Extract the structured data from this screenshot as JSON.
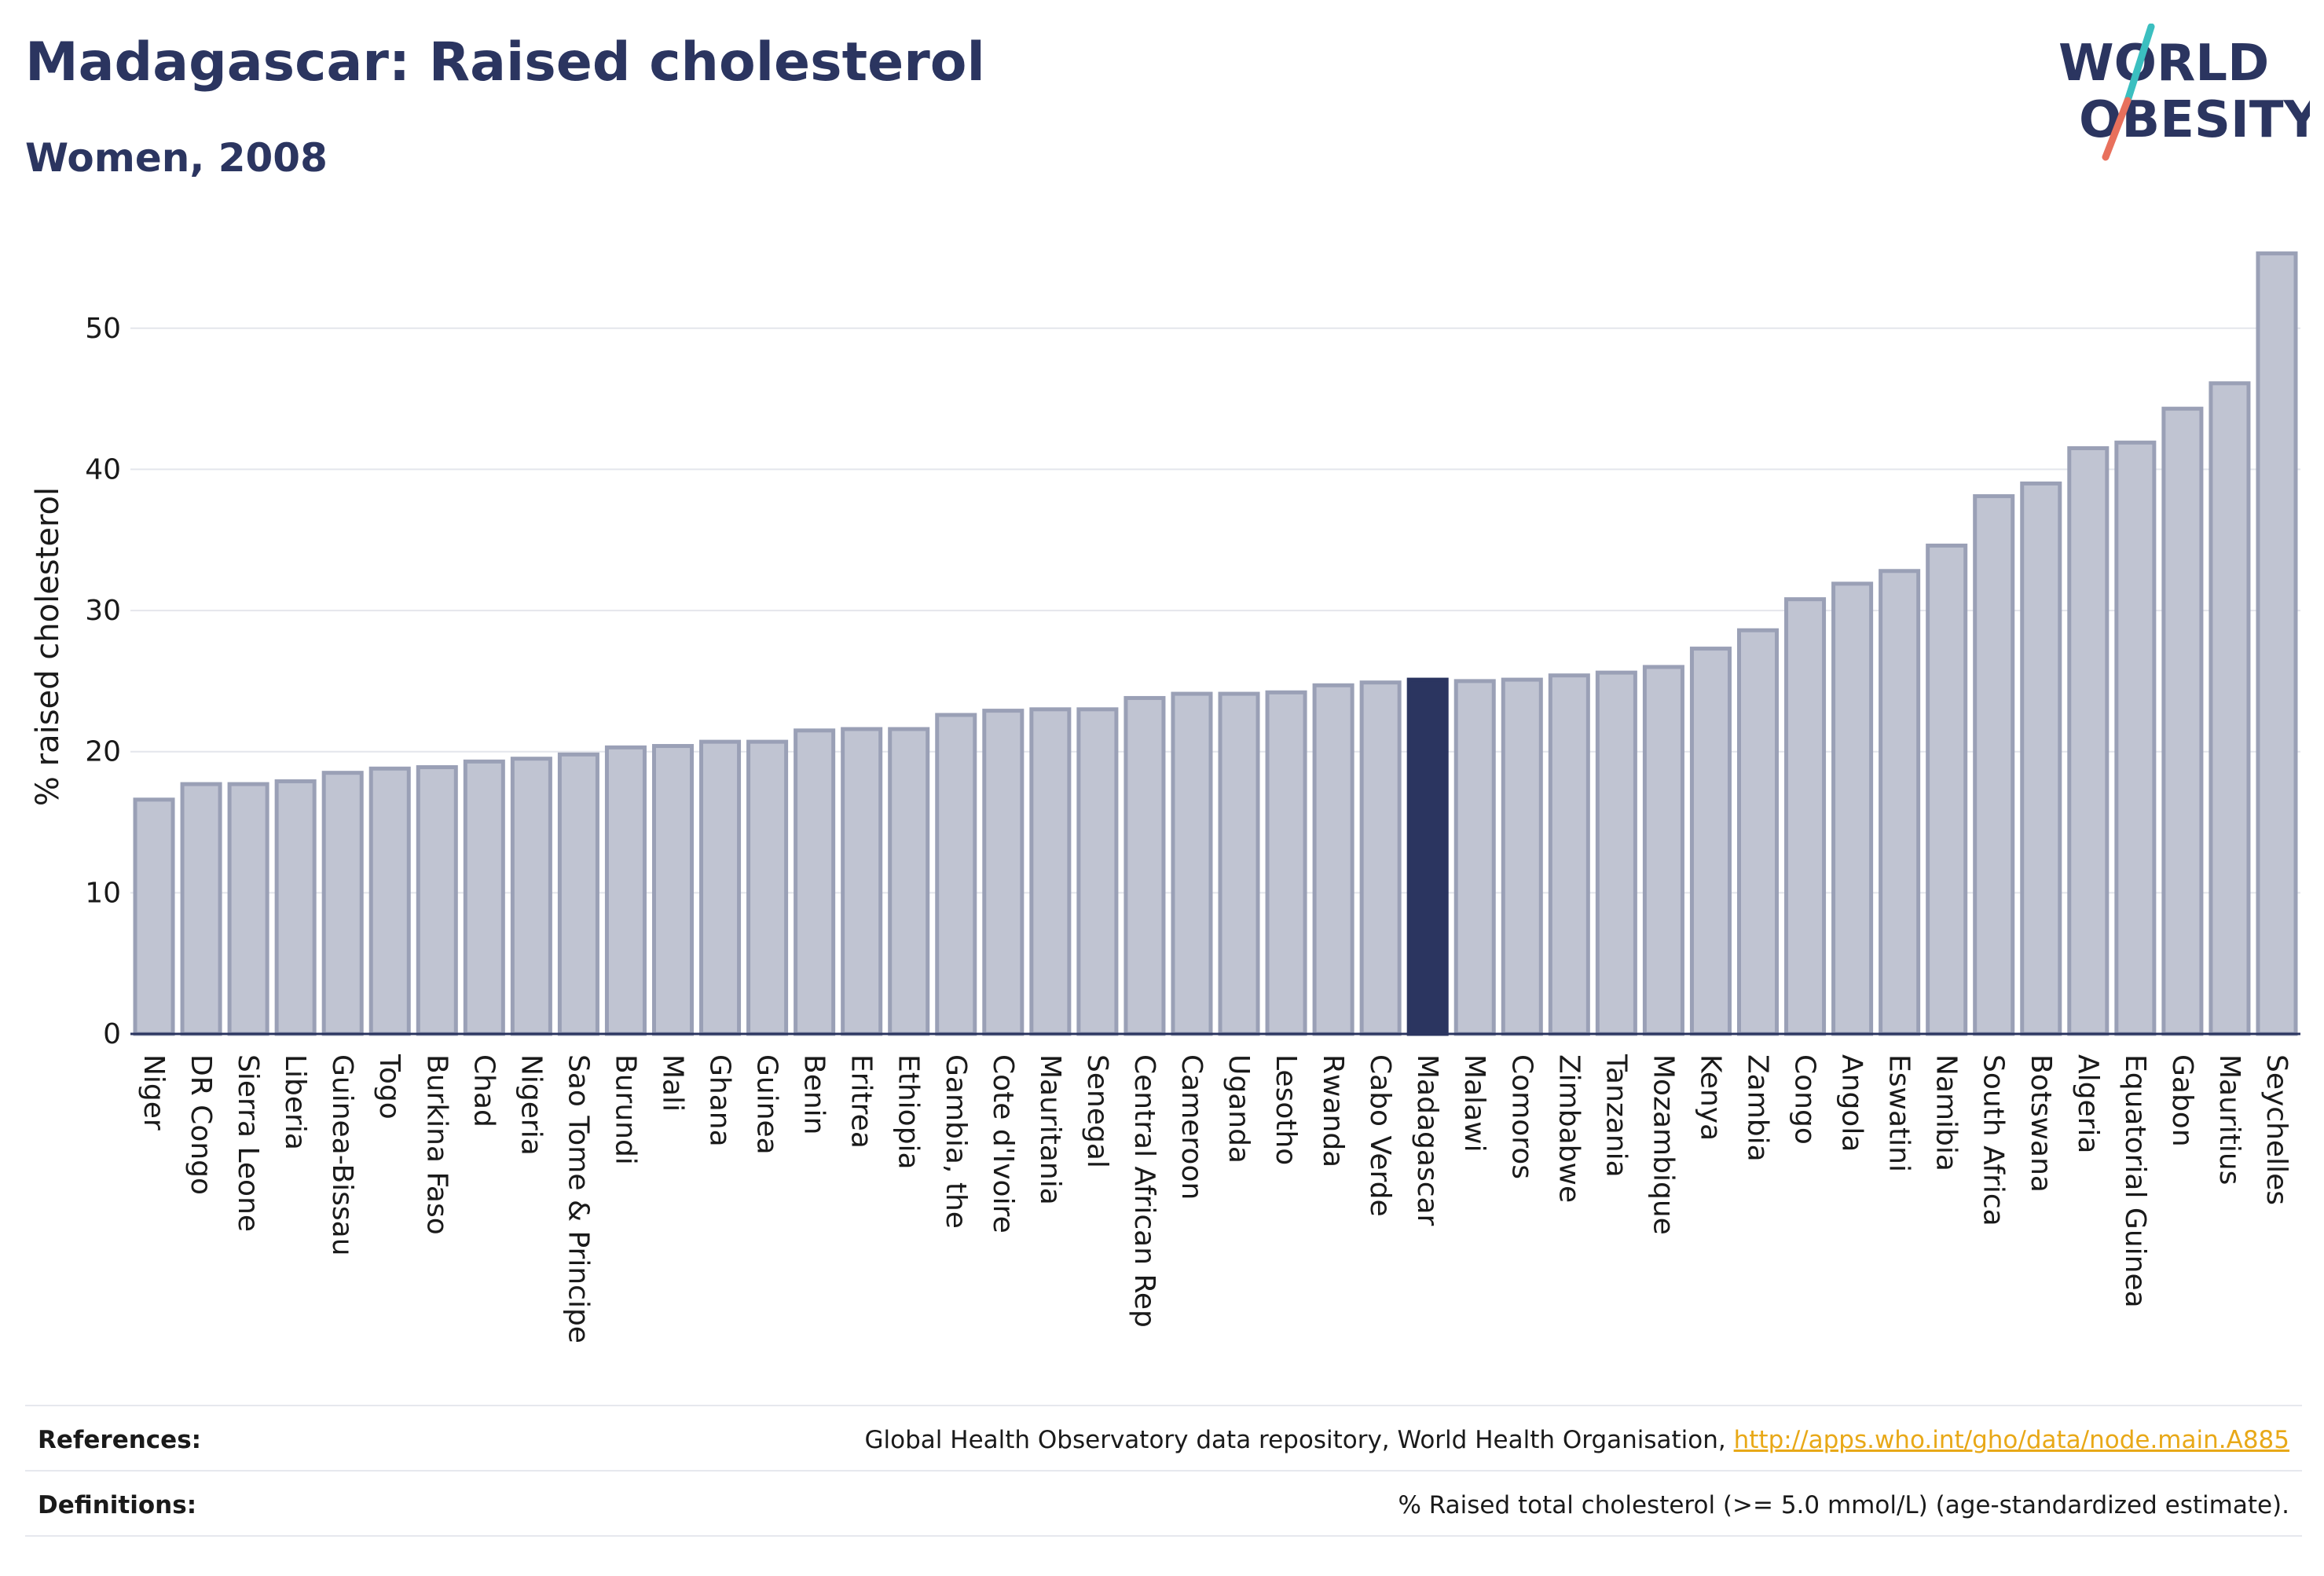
{
  "header": {
    "title": "Madagascar: Raised cholesterol",
    "subtitle": "Women, 2008"
  },
  "logo": {
    "line1": "WORLD",
    "line2": "OBESITY",
    "colors": {
      "text": "#2b3560",
      "slash_teal": "#3bbfc0",
      "slash_red": "#e8705c"
    }
  },
  "chart_data": {
    "type": "bar",
    "title": "Madagascar: Raised cholesterol",
    "subtitle": "Women, 2008",
    "ylabel": "% raised cholesterol",
    "xlabel": "",
    "ylim": [
      0,
      56
    ],
    "yticks": [
      0,
      10,
      20,
      30,
      40,
      50
    ],
    "grid": true,
    "highlight": "Madagascar",
    "colors": {
      "bar": "#c0c4d2",
      "bar_edge": "#9aa0b6",
      "highlight": "#2b3560"
    },
    "categories": [
      "Niger",
      "DR Congo",
      "Sierra Leone",
      "Liberia",
      "Guinea-Bissau",
      "Togo",
      "Burkina Faso",
      "Chad",
      "Nigeria",
      "Sao Tome & Principe",
      "Burundi",
      "Mali",
      "Ghana",
      "Guinea",
      "Benin",
      "Eritrea",
      "Ethiopia",
      "Gambia, the",
      "Cote d'Ivoire",
      "Mauritania",
      "Senegal",
      "Central African Rep",
      "Cameroon",
      "Uganda",
      "Lesotho",
      "Rwanda",
      "Cabo Verde",
      "Madagascar",
      "Malawi",
      "Comoros",
      "Zimbabwe",
      "Tanzania",
      "Mozambique",
      "Kenya",
      "Zambia",
      "Congo",
      "Angola",
      "Eswatini",
      "Namibia",
      "South Africa",
      "Botswana",
      "Algeria",
      "Equatorial Guinea",
      "Gabon",
      "Mauritius",
      "Seychelles"
    ],
    "values": [
      16.6,
      17.7,
      17.7,
      17.9,
      18.5,
      18.8,
      18.9,
      19.3,
      19.5,
      19.8,
      20.3,
      20.4,
      20.7,
      20.7,
      21.5,
      21.6,
      21.6,
      22.6,
      22.9,
      23.0,
      23.0,
      23.8,
      24.1,
      24.1,
      24.2,
      24.7,
      24.9,
      25.1,
      25.0,
      25.1,
      25.4,
      25.6,
      26.0,
      27.3,
      28.6,
      30.8,
      31.9,
      32.8,
      34.6,
      38.1,
      39.0,
      41.5,
      41.9,
      44.3,
      46.1,
      55.3
    ]
  },
  "footer": {
    "references_label": "References:",
    "references_text": "Global Health Observatory data repository, World Health Organisation, ",
    "references_link": "http://apps.who.int/gho/data/node.main.A885",
    "definitions_label": "Definitions:",
    "definitions_text": "% Raised total cholesterol (>= 5.0 mmol/L) (age-standardized estimate)."
  }
}
